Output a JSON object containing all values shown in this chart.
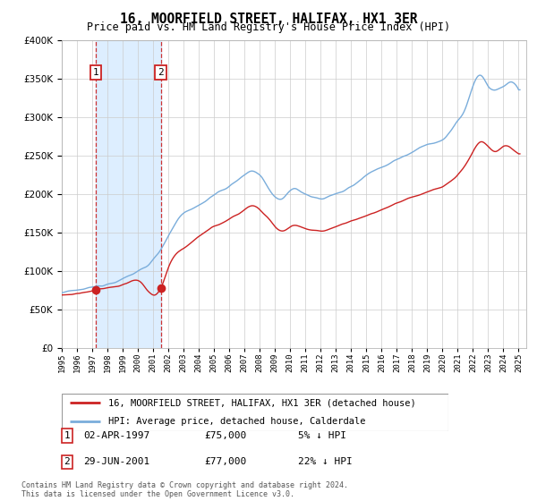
{
  "title": "16, MOORFIELD STREET, HALIFAX, HX1 3ER",
  "subtitle": "Price paid vs. HM Land Registry's House Price Index (HPI)",
  "legend_line1": "16, MOORFIELD STREET, HALIFAX, HX1 3ER (detached house)",
  "legend_line2": "HPI: Average price, detached house, Calderdale",
  "annotation1_label": "1",
  "annotation1_date": "02-APR-1997",
  "annotation1_price": "£75,000",
  "annotation1_hpi": "5% ↓ HPI",
  "annotation2_label": "2",
  "annotation2_date": "29-JUN-2001",
  "annotation2_price": "£77,000",
  "annotation2_hpi": "22% ↓ HPI",
  "footnote": "Contains HM Land Registry data © Crown copyright and database right 2024.\nThis data is licensed under the Open Government Licence v3.0.",
  "hpi_color": "#7aaddb",
  "price_color": "#cc2222",
  "marker_color": "#cc2222",
  "vline_color": "#cc3333",
  "shade_color": "#ddeeff",
  "annotation_box_color": "#cc2222",
  "ylim_min": 0,
  "ylim_max": 400000,
  "x_start_year": 1995,
  "x_end_year": 2025,
  "sale1_year": 1997.25,
  "sale1_value": 75000,
  "sale2_year": 2001.5,
  "sale2_value": 77000
}
